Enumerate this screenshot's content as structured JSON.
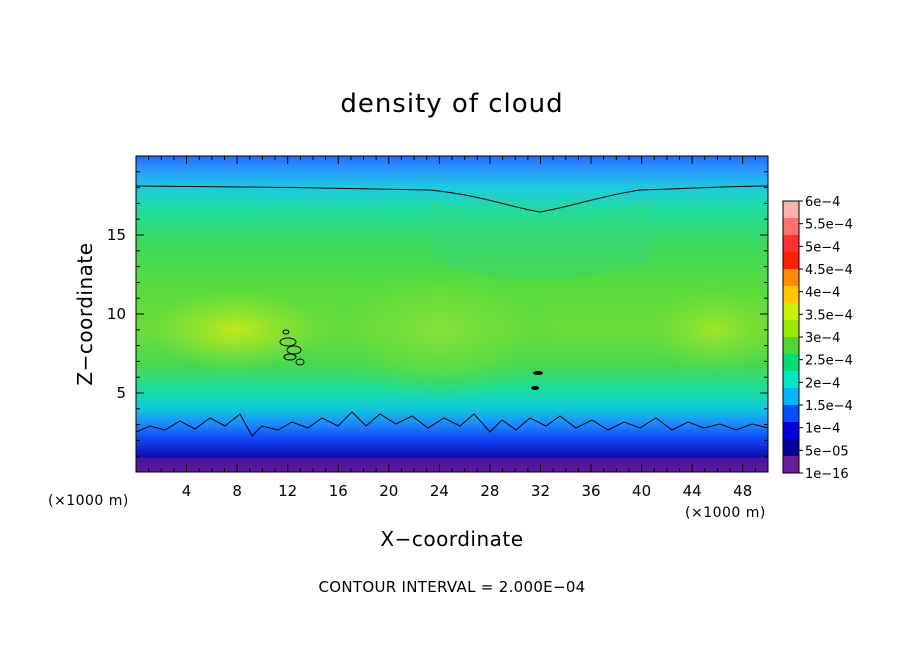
{
  "chart_data": {
    "type": "heatmap",
    "title": "density of cloud",
    "xlabel": "X−coordinate",
    "ylabel": "Z−coordinate",
    "x_unit": "(×1000 m)",
    "y_unit": "(×1000 m)",
    "xlim": [
      0,
      50
    ],
    "ylim": [
      0,
      20
    ],
    "x_ticks": [
      4,
      8,
      12,
      16,
      20,
      24,
      28,
      32,
      36,
      40,
      44,
      48
    ],
    "y_ticks": [
      5,
      10,
      15
    ],
    "footer": "CONTOUR INTERVAL = 2.000E−04",
    "contour_interval": 0.0002,
    "colorbar": {
      "labels": [
        "6e−4",
        "5.5e−4",
        "5e−4",
        "4.5e−4",
        "4e−4",
        "3.5e−4",
        "3e−4",
        "2.5e−4",
        "2e−4",
        "1.5e−4",
        "1e−4",
        "5e−05",
        "1e−16"
      ],
      "colors": [
        "#ffb0b0",
        "#ff7070",
        "#ff3030",
        "#ff2000",
        "#ff8c00",
        "#ffc800",
        "#c8f000",
        "#9be800",
        "#4cd830",
        "#00dc78",
        "#00e6c8",
        "#00b4ff",
        "#0050ff",
        "#0000dc",
        "#000096",
        "#6a1a9a"
      ]
    }
  }
}
